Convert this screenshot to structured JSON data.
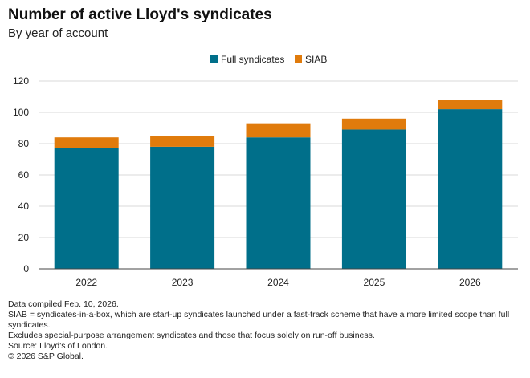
{
  "title": "Number of active Lloyd's syndicates",
  "subtitle": "By year of account",
  "chart_data": {
    "type": "bar",
    "stacked": true,
    "categories": [
      "2022",
      "2023",
      "2024",
      "2025",
      "2026"
    ],
    "series": [
      {
        "name": "Full syndicates",
        "values": [
          77,
          78,
          84,
          89,
          102
        ],
        "color": "#006f8a"
      },
      {
        "name": "SIAB",
        "values": [
          7,
          7,
          9,
          7,
          6
        ],
        "color": "#e07b0c"
      }
    ],
    "ylim": [
      0,
      120
    ],
    "yticks": [
      0,
      20,
      40,
      60,
      80,
      100,
      120
    ],
    "grid": true,
    "legend": "top-center"
  },
  "notes": [
    "Data compiled Feb. 10, 2026.",
    "SIAB = syndicates-in-a-box, which are start-up syndicates launched under a fast-track scheme that have a more limited scope than full syndicates.",
    "Excludes special-purpose arrangement syndicates and those that focus solely on run-off business.",
    "Source: Lloyd's of London.",
    "© 2026 S&P Global."
  ]
}
